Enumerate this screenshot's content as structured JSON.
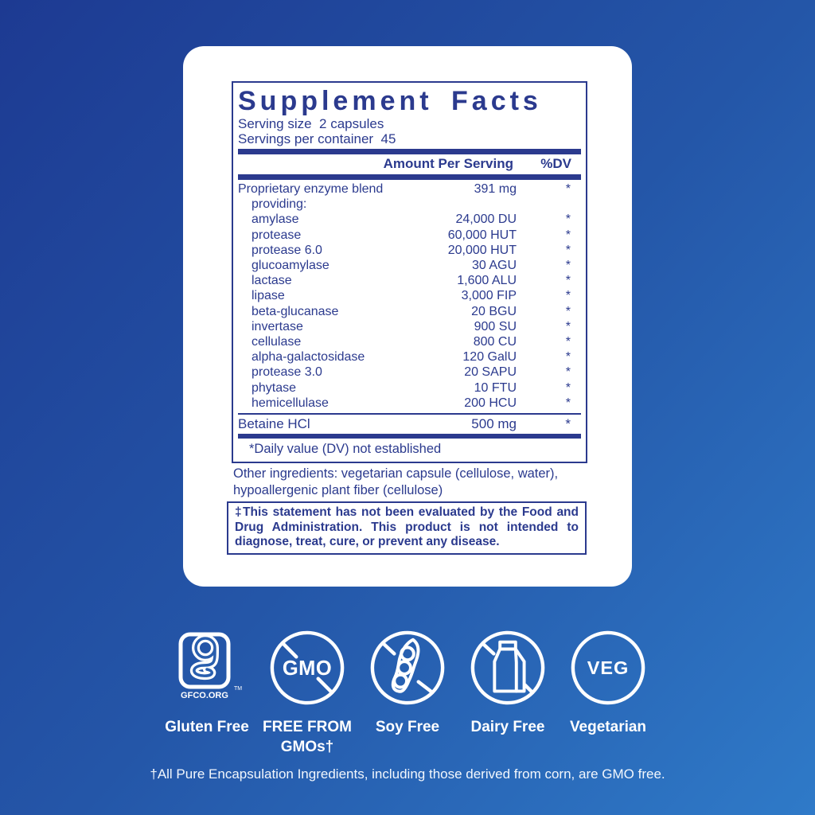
{
  "colors": {
    "navy": "#2b3a8e",
    "background_top_left": "#1d3a92",
    "background_middle": "#2456a8",
    "background_bottom_right": "#2f7ac8",
    "card": "#ffffff",
    "badge_line": "#ffffff"
  },
  "panel": {
    "title": "Supplement Facts",
    "serving_size": "Serving size  2 capsules",
    "servings_per_container": "Servings per container  45",
    "columns": {
      "amount": "Amount Per Serving",
      "dv": "%DV"
    },
    "rows": [
      {
        "name": "Proprietary enzyme blend",
        "amount": "391 mg",
        "dv": "*",
        "indent": 0
      },
      {
        "name": "providing:",
        "amount": "",
        "dv": "",
        "indent": 1
      },
      {
        "name": "amylase",
        "amount": "24,000 DU",
        "dv": "*",
        "indent": 1
      },
      {
        "name": "protease",
        "amount": "60,000 HUT",
        "dv": "*",
        "indent": 1
      },
      {
        "name": "protease 6.0",
        "amount": "20,000 HUT",
        "dv": "*",
        "indent": 1
      },
      {
        "name": "glucoamylase",
        "amount": "30 AGU",
        "dv": "*",
        "indent": 1
      },
      {
        "name": "lactase",
        "amount": "1,600 ALU",
        "dv": "*",
        "indent": 1
      },
      {
        "name": "lipase",
        "amount": "3,000 FIP",
        "dv": "*",
        "indent": 1
      },
      {
        "name": "beta-glucanase",
        "amount": "20 BGU",
        "dv": "*",
        "indent": 1
      },
      {
        "name": "invertase",
        "amount": "900 SU",
        "dv": "*",
        "indent": 1
      },
      {
        "name": "cellulase",
        "amount": "800 CU",
        "dv": "*",
        "indent": 1
      },
      {
        "name": "alpha-galactosidase",
        "amount": "120 GalU",
        "dv": "*",
        "indent": 1
      },
      {
        "name": "protease 3.0",
        "amount": "20 SAPU",
        "dv": "*",
        "indent": 1
      },
      {
        "name": "phytase",
        "amount": "10 FTU",
        "dv": "*",
        "indent": 1
      },
      {
        "name": "hemicellulase",
        "amount": "200 HCU",
        "dv": "*",
        "indent": 1
      }
    ],
    "betaine": {
      "name": "Betaine HCl",
      "amount": "500 mg",
      "dv": "*"
    },
    "dv_note": "*Daily value (DV) not established"
  },
  "other_ingredients": "Other ingredients: vegetarian capsule (cellulose, water), hypoallergenic plant fiber (cellulose)",
  "disclaimer": "‡This statement has not been evaluated by the Food and Drug Administration. This product is not intended to diagnose, treat, cure, or prevent any disease.",
  "badges": [
    {
      "id": "gluten-free",
      "label": "Gluten Free",
      "logo_text": "GFCO.ORG",
      "tm": "TM"
    },
    {
      "id": "gmo-free",
      "label": "FREE FROM GMOs†",
      "icon_text": "GMO"
    },
    {
      "id": "soy-free",
      "label": "Soy Free"
    },
    {
      "id": "dairy-free",
      "label": "Dairy Free"
    },
    {
      "id": "vegetarian",
      "label": "Vegetarian",
      "icon_text": "VEG"
    }
  ],
  "footer_note": "†All Pure Encapsulation Ingredients, including those derived from corn, are GMO free."
}
